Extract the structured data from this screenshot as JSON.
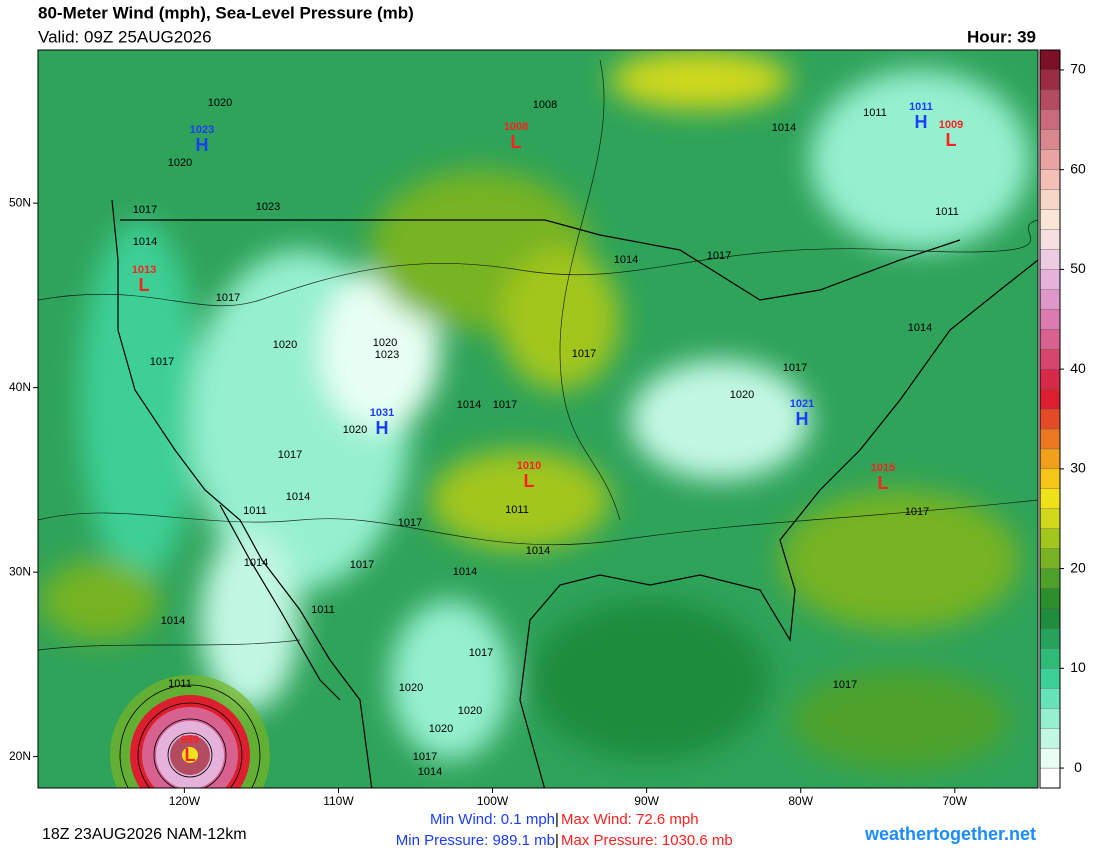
{
  "header": {
    "title": "80-Meter Wind (mph), Sea-Level Pressure (mb)",
    "valid": "Valid: 09Z 25AUG2026",
    "hour": "Hour: 39"
  },
  "map": {
    "xlim": [
      -129.5,
      -64.6
    ],
    "ylim": [
      18.3,
      58.3
    ],
    "xticks": [
      {
        "value": -120,
        "label": "120W"
      },
      {
        "value": -110,
        "label": "110W"
      },
      {
        "value": -100,
        "label": "100W"
      },
      {
        "value": -90,
        "label": "90W"
      },
      {
        "value": -80,
        "label": "80W"
      },
      {
        "value": -70,
        "label": "70W"
      }
    ],
    "yticks": [
      {
        "value": 50,
        "label": "50N"
      },
      {
        "value": 40,
        "label": "40N"
      },
      {
        "value": 30,
        "label": "30N"
      },
      {
        "value": 20,
        "label": "20N"
      }
    ],
    "centers": [
      {
        "kind": "H",
        "value": "1023"
      },
      {
        "kind": "L",
        "value": "1008"
      },
      {
        "kind": "H",
        "value": "1011"
      },
      {
        "kind": "L",
        "value": "1009"
      },
      {
        "kind": "L",
        "value": "1013"
      },
      {
        "kind": "H",
        "value": "1031"
      },
      {
        "kind": "H",
        "value": "1021"
      },
      {
        "kind": "L",
        "value": "1010"
      },
      {
        "kind": "L",
        "value": "1015"
      },
      {
        "kind": "L",
        "value": "989"
      }
    ],
    "isobar_labels": [
      "1020",
      "1008",
      "1014",
      "1011",
      "1020",
      "1023",
      "1017",
      "1014",
      "1017",
      "1011",
      "1017",
      "1014",
      "1017",
      "1020",
      "1020",
      "1023",
      "1017",
      "1014",
      "1017",
      "1020",
      "1020",
      "1017",
      "1014",
      "1017",
      "1014",
      "1011",
      "1011",
      "1017",
      "1017",
      "1014",
      "1017",
      "1014",
      "1014",
      "1011",
      "1014",
      "1017",
      "1011",
      "1020",
      "1020",
      "1017",
      "1020",
      "1017",
      "1014"
    ]
  },
  "colorbar": {
    "lim": [
      -2,
      72
    ],
    "ticks": [
      0,
      10,
      20,
      30,
      40,
      50,
      60,
      70
    ],
    "colors": [
      "#ffffff",
      "#e8fff4",
      "#c2f7e3",
      "#96f0d0",
      "#66e3b8",
      "#3ccf96",
      "#2fba78",
      "#27a25a",
      "#1f8c3e",
      "#2c8f2c",
      "#4ea12a",
      "#77b324",
      "#a3c61c",
      "#cfd81a",
      "#f0e21a",
      "#f5c518",
      "#f0a01a",
      "#e97820",
      "#e34a25",
      "#dc1f2e",
      "#d72a4a",
      "#d6456e",
      "#d7628f",
      "#da7cb0",
      "#de97c9",
      "#e4b2da",
      "#edcbe3",
      "#f6dfe0",
      "#f9e6d6",
      "#f7d6c6",
      "#f2c0b6",
      "#e8a3a3",
      "#d98890",
      "#c96b7a",
      "#b44c60",
      "#9a2c44",
      "#7c1026"
    ]
  },
  "footer": {
    "run": "18Z 23AUG2026 NAM-12km",
    "min_wind": "Min Wind:  0.1 mph",
    "max_wind": "Max Wind:  72.6 mph",
    "min_pressure": "Min Pressure: 989.1 mb",
    "max_pressure": "Max Pressure: 1030.6 mb",
    "separator": "|",
    "site": "weathertogether.net"
  }
}
